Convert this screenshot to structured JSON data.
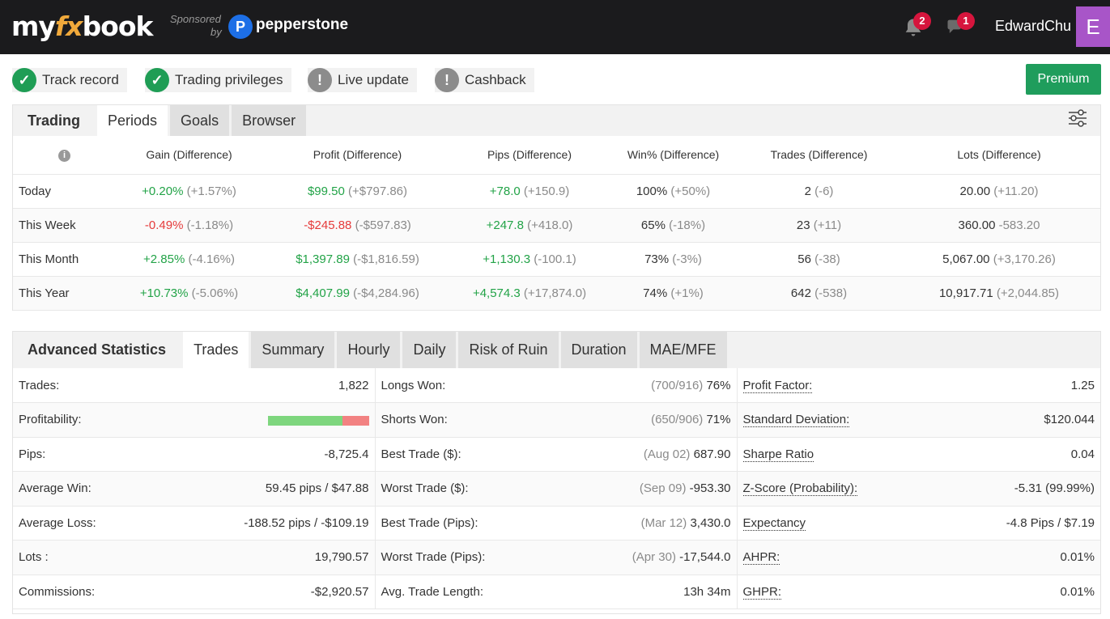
{
  "header": {
    "logo_parts": [
      "my",
      "fx",
      "book"
    ],
    "sponsored": "Sponsored",
    "by": "by",
    "sponsor_name": "pepperstone",
    "notifications_count": "2",
    "messages_count": "1",
    "username": "EdwardChu",
    "avatar_letter": "E"
  },
  "status": {
    "items": [
      {
        "label": "Track record",
        "state": "ok"
      },
      {
        "label": "Trading privileges",
        "state": "ok"
      },
      {
        "label": "Live update",
        "state": "warn"
      },
      {
        "label": "Cashback",
        "state": "warn"
      }
    ],
    "premium_label": "Premium"
  },
  "periods": {
    "tabs": [
      "Trading",
      "Periods",
      "Goals",
      "Browser"
    ],
    "columns": [
      "Gain (Difference)",
      "Profit (Difference)",
      "Pips (Difference)",
      "Win% (Difference)",
      "Trades (Difference)",
      "Lots (Difference)"
    ],
    "rows": [
      {
        "label": "Today",
        "gain": "+0.20%",
        "gain_diff": "(+1.57%)",
        "profit": "$99.50",
        "profit_diff": "(+$797.86)",
        "pips": "+78.0",
        "pips_diff": "(+150.9)",
        "win": "100%",
        "win_diff": "(+50%)",
        "trades": "2",
        "trades_diff": "(-6)",
        "lots": "20.00",
        "lots_diff": "(+11.20)"
      },
      {
        "label": "This Week",
        "gain": "-0.49%",
        "gain_diff": "(-1.18%)",
        "profit": "-$245.88",
        "profit_diff": "(-$597.83)",
        "pips": "+247.8",
        "pips_diff": "(+418.0)",
        "win": "65%",
        "win_diff": "(-18%)",
        "trades": "23",
        "trades_diff": "(+11)",
        "lots": "360.00",
        "lots_diff": "-583.20"
      },
      {
        "label": "This Month",
        "gain": "+2.85%",
        "gain_diff": "(-4.16%)",
        "profit": "$1,397.89",
        "profit_diff": "(-$1,816.59)",
        "pips": "+1,130.3",
        "pips_diff": "(-100.1)",
        "win": "73%",
        "win_diff": "(-3%)",
        "trades": "56",
        "trades_diff": "(-38)",
        "lots": "5,067.00",
        "lots_diff": "(+3,170.26)"
      },
      {
        "label": "This Year",
        "gain": "+10.73%",
        "gain_diff": "(-5.06%)",
        "profit": "$4,407.99",
        "profit_diff": "(-$4,284.96)",
        "pips": "+4,574.3",
        "pips_diff": "(+17,874.0)",
        "win": "74%",
        "win_diff": "(+1%)",
        "trades": "642",
        "trades_diff": "(-538)",
        "lots": "10,917.71",
        "lots_diff": "(+2,044.85)"
      }
    ]
  },
  "advanced": {
    "title": "Advanced Statistics",
    "tabs": [
      "Trades",
      "Summary",
      "Hourly",
      "Daily",
      "Risk of Ruin",
      "Duration",
      "MAE/MFE"
    ],
    "profitability_win_fraction": 0.74,
    "rows": [
      {
        "l1": "Trades:",
        "v1": "1,822",
        "l2": "Longs Won:",
        "v2d": "(700/916)",
        "v2": "76%",
        "l3": "Profit Factor:",
        "v3": "1.25"
      },
      {
        "l1": "Profitability:",
        "v1": "",
        "l2": "Shorts Won:",
        "v2d": "(650/906)",
        "v2": "71%",
        "l3": "Standard Deviation:",
        "v3": "$120.044"
      },
      {
        "l1": "Pips:",
        "v1": "-8,725.4",
        "l2": "Best Trade ($):",
        "v2d": "(Aug 02)",
        "v2": "687.90",
        "l3": "Sharpe Ratio",
        "v3": "0.04"
      },
      {
        "l1": "Average Win:",
        "v1": "59.45 pips / $47.88",
        "l2": "Worst Trade ($):",
        "v2d": "(Sep 09)",
        "v2": "-953.30",
        "l3": "Z-Score (Probability):",
        "v3": "-5.31 (99.99%)"
      },
      {
        "l1": "Average Loss:",
        "v1": "-188.52 pips / -$109.19",
        "l2": "Best Trade (Pips):",
        "v2d": "(Mar 12)",
        "v2": "3,430.0",
        "l3": "Expectancy",
        "v3": "-4.8 Pips / $7.19"
      },
      {
        "l1": "Lots :",
        "v1": "19,790.57",
        "l2": "Worst Trade (Pips):",
        "v2d": "(Apr 30)",
        "v2": "-17,544.0",
        "l3": "AHPR:",
        "v3": "0.01%"
      },
      {
        "l1": "Commissions:",
        "v1": "-$2,920.57",
        "l2": "Avg. Trade Length:",
        "v2d": "",
        "v2": "13h 34m",
        "l3": "GHPR:",
        "v3": "0.01%"
      }
    ]
  },
  "colors": {
    "topbar": "#1b1b1d",
    "positive": "#22a347",
    "negative": "#e53b3b",
    "premium": "#1f9d5c",
    "avatar": "#a855c8",
    "badge": "#d6153d"
  }
}
